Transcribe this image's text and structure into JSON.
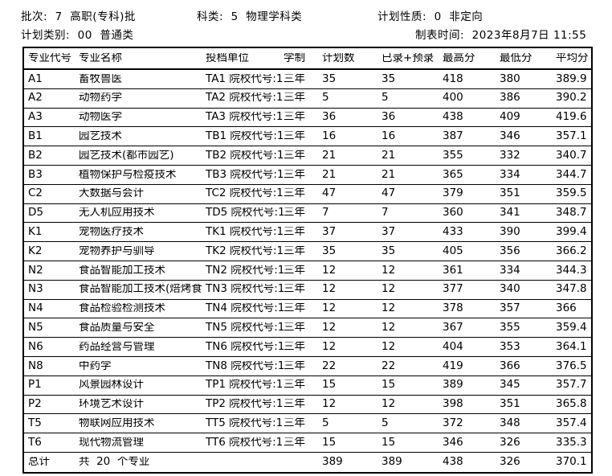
{
  "colors": {
    "text": "#000000",
    "background": "#ffffff",
    "border": "#000000"
  },
  "meta": {
    "batch": "批次:  7  高职(专科)批",
    "subject_category": "科类:  5  物理学科类",
    "plan_nature": "计划性质:  0  非定向",
    "plan_category": "计划类别:  00  普通类",
    "report_time": "制表时间:  2023年8月7日 11:55"
  },
  "table": {
    "headers": [
      "专业代号",
      "专业名称",
      "投档单位",
      "学制",
      "计划数",
      "已录+预录",
      "最高分",
      "最低分",
      "平均分"
    ],
    "rows": [
      [
        "A1",
        "畜牧兽医",
        "TA1 院校代号:1",
        "三年",
        "35",
        "35",
        "418",
        "380",
        "389.9"
      ],
      [
        "A2",
        "动物药学",
        "TA2 院校代号:1",
        "三年",
        "5",
        "5",
        "400",
        "386",
        "390.2"
      ],
      [
        "A3",
        "动物医学",
        "TA3 院校代号:1",
        "三年",
        "36",
        "36",
        "438",
        "409",
        "419.6"
      ],
      [
        "B1",
        "园艺技术",
        "TB1 院校代号:1",
        "三年",
        "16",
        "16",
        "387",
        "346",
        "357.1"
      ],
      [
        "B2",
        "园艺技术(都市园艺)",
        "TB2 院校代号:1",
        "三年",
        "21",
        "21",
        "355",
        "332",
        "340.7"
      ],
      [
        "B3",
        "植物保护与检疫技术",
        "TB3 院校代号:1",
        "三年",
        "21",
        "21",
        "365",
        "334",
        "344.7"
      ],
      [
        "C2",
        "大数据与会计",
        "TC2 院校代号:1",
        "三年",
        "47",
        "47",
        "379",
        "351",
        "359.5"
      ],
      [
        "D5",
        "无人机应用技术",
        "TD5 院校代号:1",
        "三年",
        "7",
        "7",
        "360",
        "341",
        "348.7"
      ],
      [
        "K1",
        "宠物医疗技术",
        "TK1 院校代号:1",
        "三年",
        "37",
        "37",
        "433",
        "390",
        "399.4"
      ],
      [
        "K2",
        "宠物养护与驯导",
        "TK2 院校代号:1",
        "三年",
        "35",
        "35",
        "405",
        "356",
        "366.2"
      ],
      [
        "N2",
        "食品智能加工技术",
        "TN2 院校代号:1",
        "三年",
        "12",
        "12",
        "361",
        "334",
        "344.3"
      ],
      [
        "N3",
        "食品智能加工技术(焙烤食",
        "TN3 院校代号:1",
        "三年",
        "12",
        "12",
        "377",
        "340",
        "347.8"
      ],
      [
        "N4",
        "食品检验检测技术",
        "TN4 院校代号:1",
        "三年",
        "12",
        "12",
        "378",
        "357",
        "366"
      ],
      [
        "N5",
        "食品质量与安全",
        "TN5 院校代号:1",
        "三年",
        "12",
        "12",
        "367",
        "355",
        "359.4"
      ],
      [
        "N6",
        "药品经营与管理",
        "TN6 院校代号:1",
        "三年",
        "12",
        "12",
        "404",
        "353",
        "364.1"
      ],
      [
        "N8",
        "中药学",
        "TN8 院校代号:1",
        "三年",
        "22",
        "22",
        "419",
        "366",
        "376.5"
      ],
      [
        "P1",
        "风景园林设计",
        "TP1 院校代号:1",
        "三年",
        "15",
        "15",
        "389",
        "345",
        "357.7"
      ],
      [
        "P2",
        "环境艺术设计",
        "TP2 院校代号:1",
        "三年",
        "12",
        "12",
        "398",
        "351",
        "365.8"
      ],
      [
        "T5",
        "物联网应用技术",
        "TT5 院校代号:1",
        "三年",
        "5",
        "5",
        "372",
        "348",
        "357.4"
      ],
      [
        "T6",
        "现代物流管理",
        "TT6 院校代号:1",
        "三年",
        "15",
        "15",
        "346",
        "326",
        "335.3"
      ]
    ],
    "total_row": [
      "总计",
      "共  20  个专业",
      "",
      "",
      "389",
      "389",
      "438",
      "326",
      "370.1"
    ]
  }
}
